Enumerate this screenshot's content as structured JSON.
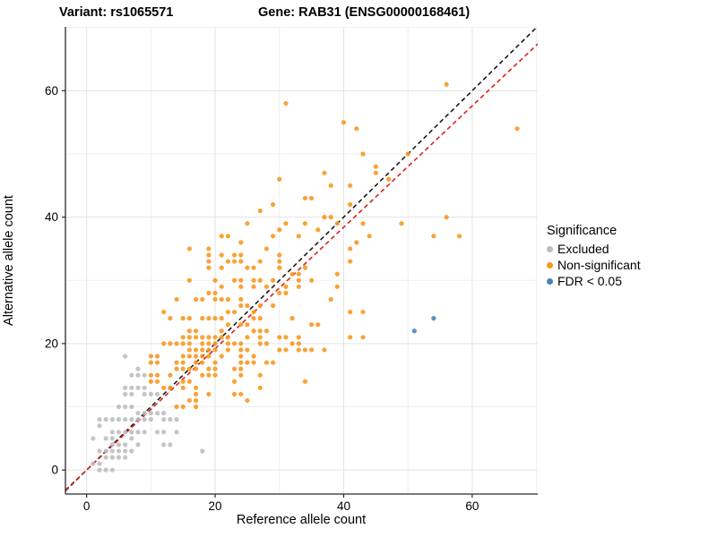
{
  "titles": {
    "variant": "Variant: rs1065571",
    "gene": "Gene: RAB31 (ENSG00000168461)"
  },
  "axes": {
    "x": {
      "label": "Reference allele count",
      "tick_labels": [
        "0",
        "20",
        "40",
        "60"
      ],
      "tick_values": [
        0,
        20,
        40,
        60
      ],
      "minor_gridlines": [
        10,
        30,
        50,
        70
      ],
      "range": [
        -3.3,
        70.2
      ]
    },
    "y": {
      "label": "Alternative allele count",
      "tick_labels": [
        "0",
        "20",
        "40",
        "60"
      ],
      "tick_values": [
        0,
        20,
        40,
        60
      ],
      "minor_gridlines": [
        10,
        30,
        50,
        70
      ],
      "range": [
        -3.8,
        70.1
      ]
    }
  },
  "legend": {
    "title": "Significance",
    "items": [
      {
        "label": "Excluded",
        "color": "#BDBDBD"
      },
      {
        "label": "Non-significant",
        "color": "#F8961C"
      },
      {
        "label": "FDR < 0.05",
        "color": "#4682B4"
      }
    ]
  },
  "colors": {
    "major_grid": "#E3E3E3",
    "minor_grid": "#EFEFEF",
    "axis_line": "#2B2B2B",
    "identity_line": "#1A1A1A",
    "fit_line": "#E02020"
  },
  "chart_data": {
    "type": "scatter",
    "title_left": "Variant: rs1065571",
    "title_right": "Gene: RAB31 (ENSG00000168461)",
    "xlabel": "Reference allele count",
    "ylabel": "Alternative allele count",
    "xlim": [
      -3.3,
      70.2
    ],
    "ylim": [
      -3.8,
      70.1
    ],
    "grid": true,
    "legend_position": "right",
    "legend_title": "Significance",
    "reference_lines": [
      {
        "name": "identity",
        "slope": 1,
        "intercept": 0,
        "style": "dashed",
        "color": "#1A1A1A"
      },
      {
        "name": "expected-ratio",
        "slope": 0.96,
        "intercept": 0,
        "style": "dashed",
        "color": "#E02020"
      }
    ],
    "series": [
      {
        "name": "Excluded",
        "color": "#BDBDBD",
        "points": [
          [
            6,
            18
          ],
          [
            8,
            16
          ],
          [
            7,
            15
          ],
          [
            8,
            15
          ],
          [
            9,
            15
          ],
          [
            6,
            13
          ],
          [
            7,
            13
          ],
          [
            8,
            13
          ],
          [
            9,
            13
          ],
          [
            6,
            12
          ],
          [
            7,
            12
          ],
          [
            9,
            12
          ],
          [
            10,
            12
          ],
          [
            11,
            12
          ],
          [
            5,
            10
          ],
          [
            6,
            10
          ],
          [
            7,
            10
          ],
          [
            8,
            9
          ],
          [
            9,
            9
          ],
          [
            10,
            9
          ],
          [
            11,
            9
          ],
          [
            12,
            9
          ],
          [
            2,
            8
          ],
          [
            3,
            8
          ],
          [
            4,
            8
          ],
          [
            5,
            8
          ],
          [
            6,
            8
          ],
          [
            7,
            8
          ],
          [
            8,
            8
          ],
          [
            9,
            8
          ],
          [
            10,
            8
          ],
          [
            12,
            8
          ],
          [
            13,
            8
          ],
          [
            14,
            8
          ],
          [
            2,
            7
          ],
          [
            4,
            6
          ],
          [
            5,
            6
          ],
          [
            6,
            6
          ],
          [
            7,
            6
          ],
          [
            8,
            6
          ],
          [
            9,
            6
          ],
          [
            11,
            6
          ],
          [
            12,
            6
          ],
          [
            14,
            6
          ],
          [
            1,
            5
          ],
          [
            3,
            5
          ],
          [
            4,
            5
          ],
          [
            7,
            5
          ],
          [
            4,
            4
          ],
          [
            5,
            4
          ],
          [
            6,
            4
          ],
          [
            8,
            4
          ],
          [
            12,
            4
          ],
          [
            13,
            4
          ],
          [
            2,
            3
          ],
          [
            3,
            3
          ],
          [
            4,
            3
          ],
          [
            5,
            3
          ],
          [
            6,
            3
          ],
          [
            7,
            3
          ],
          [
            18,
            3
          ],
          [
            3,
            2
          ],
          [
            4,
            2
          ],
          [
            5,
            2
          ],
          [
            6,
            2
          ],
          [
            1,
            1
          ],
          [
            2,
            1
          ],
          [
            2,
            0
          ],
          [
            3,
            0
          ],
          [
            4,
            0
          ]
        ]
      },
      {
        "name": "Non-significant",
        "color": "#F8961C",
        "points": [
          [
            56,
            61
          ],
          [
            31,
            58
          ],
          [
            40,
            55
          ],
          [
            42,
            54
          ],
          [
            67,
            54
          ],
          [
            43,
            50
          ],
          [
            50,
            50
          ],
          [
            45,
            48
          ],
          [
            37,
            47
          ],
          [
            45,
            47
          ],
          [
            30,
            46
          ],
          [
            47,
            46
          ],
          [
            38,
            45
          ],
          [
            41,
            45
          ],
          [
            34,
            43
          ],
          [
            35,
            43
          ],
          [
            29,
            42
          ],
          [
            41,
            42
          ],
          [
            27,
            41
          ],
          [
            37,
            40
          ],
          [
            38,
            40
          ],
          [
            56,
            40
          ],
          [
            25,
            39
          ],
          [
            31,
            39
          ],
          [
            34,
            39
          ],
          [
            39,
            39
          ],
          [
            43,
            39
          ],
          [
            49,
            39
          ],
          [
            30,
            38
          ],
          [
            36,
            38
          ],
          [
            21,
            37
          ],
          [
            22,
            37
          ],
          [
            29,
            37
          ],
          [
            33,
            37
          ],
          [
            44,
            37
          ],
          [
            54,
            37
          ],
          [
            58,
            37
          ],
          [
            24,
            36
          ],
          [
            42,
            36
          ],
          [
            16,
            35
          ],
          [
            19,
            35
          ],
          [
            28,
            35
          ],
          [
            41,
            35
          ],
          [
            19,
            34
          ],
          [
            21,
            34
          ],
          [
            23,
            34
          ],
          [
            24,
            34
          ],
          [
            30,
            34
          ],
          [
            19,
            33
          ],
          [
            22,
            33
          ],
          [
            23,
            33
          ],
          [
            24,
            33
          ],
          [
            27,
            33
          ],
          [
            30,
            33
          ],
          [
            41,
            33
          ],
          [
            19,
            32
          ],
          [
            21,
            32
          ],
          [
            25,
            32
          ],
          [
            26,
            32
          ],
          [
            30,
            32
          ],
          [
            34,
            32
          ],
          [
            32,
            31
          ],
          [
            33,
            31
          ],
          [
            39,
            31
          ],
          [
            16,
            30
          ],
          [
            20,
            30
          ],
          [
            23,
            30
          ],
          [
            24,
            30
          ],
          [
            26,
            30
          ],
          [
            27,
            30
          ],
          [
            29,
            30
          ],
          [
            33,
            30
          ],
          [
            35,
            30
          ],
          [
            21,
            29
          ],
          [
            24,
            29
          ],
          [
            26,
            29
          ],
          [
            28,
            29
          ],
          [
            31,
            29
          ],
          [
            33,
            29
          ],
          [
            39,
            29
          ],
          [
            19,
            28
          ],
          [
            20,
            28
          ],
          [
            30,
            28
          ],
          [
            31,
            28
          ],
          [
            14,
            27
          ],
          [
            17,
            27
          ],
          [
            18,
            27
          ],
          [
            20,
            27
          ],
          [
            21,
            27
          ],
          [
            22,
            27
          ],
          [
            24,
            27
          ],
          [
            38,
            27
          ],
          [
            24,
            26
          ],
          [
            25,
            26
          ],
          [
            27,
            26
          ],
          [
            29,
            26
          ],
          [
            12,
            25
          ],
          [
            22,
            25
          ],
          [
            23,
            25
          ],
          [
            26,
            25
          ],
          [
            41,
            25
          ],
          [
            43,
            25
          ],
          [
            13,
            24
          ],
          [
            15,
            24
          ],
          [
            16,
            24
          ],
          [
            18,
            24
          ],
          [
            19,
            24
          ],
          [
            20,
            24
          ],
          [
            21,
            24
          ],
          [
            26,
            24
          ],
          [
            27,
            24
          ],
          [
            32,
            24
          ],
          [
            22,
            23
          ],
          [
            24,
            23
          ],
          [
            25,
            23
          ],
          [
            35,
            23
          ],
          [
            36,
            23
          ],
          [
            16,
            22
          ],
          [
            17,
            22
          ],
          [
            21,
            22
          ],
          [
            26,
            22
          ],
          [
            27,
            22
          ],
          [
            28,
            22
          ],
          [
            15,
            21
          ],
          [
            16,
            21
          ],
          [
            17,
            21
          ],
          [
            18,
            21
          ],
          [
            19,
            21
          ],
          [
            20,
            21
          ],
          [
            21,
            21
          ],
          [
            22,
            21
          ],
          [
            25,
            21
          ],
          [
            27,
            21
          ],
          [
            30,
            21
          ],
          [
            31,
            21
          ],
          [
            33,
            21
          ],
          [
            41,
            21
          ],
          [
            43,
            21
          ],
          [
            12,
            20
          ],
          [
            13,
            20
          ],
          [
            14,
            20
          ],
          [
            15,
            20
          ],
          [
            16,
            20
          ],
          [
            18,
            20
          ],
          [
            19,
            20
          ],
          [
            20,
            20
          ],
          [
            22,
            20
          ],
          [
            23,
            20
          ],
          [
            24,
            20
          ],
          [
            27,
            20
          ],
          [
            28,
            20
          ],
          [
            32,
            20
          ],
          [
            33,
            20
          ],
          [
            16,
            19
          ],
          [
            17,
            19
          ],
          [
            18,
            19
          ],
          [
            19,
            19
          ],
          [
            20,
            19
          ],
          [
            22,
            19
          ],
          [
            24,
            19
          ],
          [
            25,
            19
          ],
          [
            30,
            19
          ],
          [
            31,
            19
          ],
          [
            33,
            19
          ],
          [
            34,
            19
          ],
          [
            35,
            19
          ],
          [
            37,
            19
          ],
          [
            10,
            18
          ],
          [
            11,
            18
          ],
          [
            15,
            18
          ],
          [
            16,
            18
          ],
          [
            17,
            18
          ],
          [
            18,
            18
          ],
          [
            19,
            18
          ],
          [
            21,
            18
          ],
          [
            24,
            18
          ],
          [
            26,
            18
          ],
          [
            10,
            17
          ],
          [
            11,
            17
          ],
          [
            14,
            17
          ],
          [
            15,
            17
          ],
          [
            17,
            17
          ],
          [
            18,
            17
          ],
          [
            20,
            17
          ],
          [
            24,
            17
          ],
          [
            25,
            17
          ],
          [
            26,
            17
          ],
          [
            28,
            17
          ],
          [
            29,
            17
          ],
          [
            14,
            16
          ],
          [
            15,
            16
          ],
          [
            16,
            16
          ],
          [
            17,
            16
          ],
          [
            19,
            16
          ],
          [
            20,
            16
          ],
          [
            23,
            16
          ],
          [
            24,
            16
          ],
          [
            10,
            15
          ],
          [
            11,
            15
          ],
          [
            13,
            15
          ],
          [
            18,
            15
          ],
          [
            19,
            15
          ],
          [
            20,
            15
          ],
          [
            24,
            15
          ],
          [
            27,
            15
          ],
          [
            10,
            14
          ],
          [
            11,
            14
          ],
          [
            15,
            14
          ],
          [
            16,
            14
          ],
          [
            23,
            14
          ],
          [
            34,
            14
          ],
          [
            12,
            13
          ],
          [
            13,
            13
          ],
          [
            15,
            13
          ],
          [
            17,
            13
          ],
          [
            27,
            13
          ],
          [
            17,
            12
          ],
          [
            19,
            12
          ],
          [
            23,
            12
          ],
          [
            24,
            12
          ],
          [
            16,
            11
          ],
          [
            17,
            11
          ],
          [
            25,
            11
          ],
          [
            14,
            10
          ],
          [
            15,
            10
          ],
          [
            17,
            10
          ]
        ]
      },
      {
        "name": "FDR < 0.05",
        "color": "#4682B4",
        "points": [
          [
            51,
            22
          ],
          [
            54,
            24
          ]
        ]
      }
    ]
  }
}
